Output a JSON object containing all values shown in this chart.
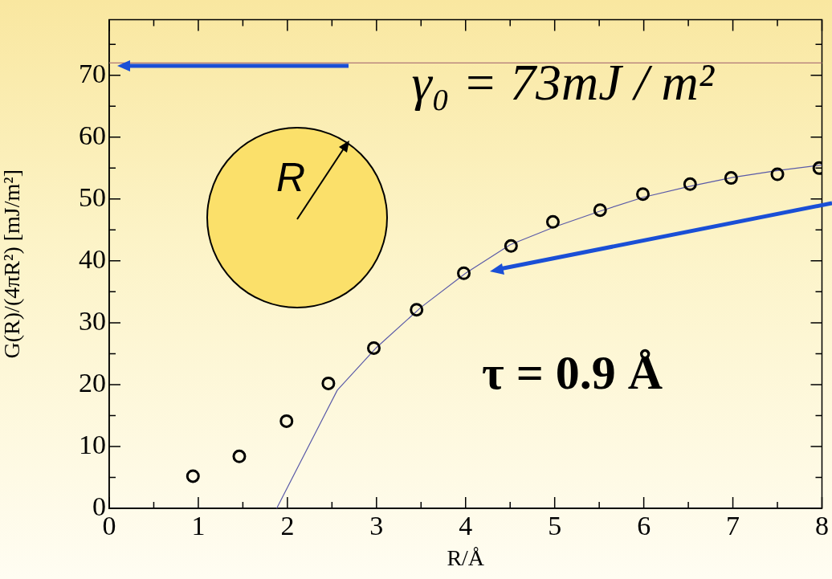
{
  "chart_data": {
    "type": "scatter",
    "xlabel": "R/Å",
    "ylabel": "G(R)/(4πR²) [mJ/m²]",
    "xlim": [
      0,
      8
    ],
    "ylim": [
      0,
      79
    ],
    "xticks": [
      0,
      {
        "value": 0.5,
        "label": null
      },
      1,
      {
        "value": 1.5,
        "label": null
      },
      2,
      {
        "value": 2.5,
        "label": null
      },
      3,
      {
        "value": 3.5,
        "label": null
      },
      4,
      {
        "value": 4.5,
        "label": null
      },
      5,
      {
        "value": 5.5,
        "label": null
      },
      6,
      {
        "value": 6.5,
        "label": null
      },
      7,
      {
        "value": 7.5,
        "label": null
      },
      8
    ],
    "yticks": [
      0,
      {
        "value": 5,
        "label": null
      },
      10,
      {
        "value": 15,
        "label": null
      },
      20,
      {
        "value": 25,
        "label": null
      },
      30,
      {
        "value": 35,
        "label": null
      },
      40,
      {
        "value": 45,
        "label": null
      },
      50,
      {
        "value": 55,
        "label": null
      },
      60,
      {
        "value": 65,
        "label": null
      },
      70,
      {
        "value": 75,
        "label": null
      }
    ],
    "grid": false,
    "legend": false,
    "series": [
      {
        "type": "scatter",
        "color": "#000000",
        "marker": "circle",
        "x": [
          0.94,
          1.46,
          1.99,
          2.46,
          2.97,
          3.45,
          3.98,
          4.51,
          4.98,
          5.51,
          5.99,
          6.52,
          6.98,
          7.5,
          7.97
        ],
        "values": [
          5.2,
          8.4,
          14.1,
          20.2,
          25.9,
          32.1,
          38.0,
          42.4,
          46.3,
          48.2,
          50.8,
          52.4,
          53.4,
          54.0,
          55.0
        ]
      },
      {
        "type": "line",
        "color": "#5a5aa8",
        "marker": "none",
        "line_style": "solid",
        "x": [
          1.88,
          2.56,
          3.0,
          3.5,
          4.0,
          4.5,
          5.0,
          5.5,
          6.0,
          6.5,
          7.0,
          7.5,
          8.0
        ],
        "values": [
          0,
          19.1,
          26,
          32.5,
          38,
          42.6,
          45.5,
          48,
          50.3,
          52,
          53.5,
          54.6,
          55.5
        ]
      }
    ],
    "ref_lines": [
      {
        "axis": "y",
        "value": 72,
        "color": "#b07878"
      }
    ],
    "annotations": [
      {
        "text": "γ₀ = 73mJ / m²",
        "x": 5,
        "y": 72
      },
      "τ = 0.9 Å",
      "R"
    ]
  }
}
